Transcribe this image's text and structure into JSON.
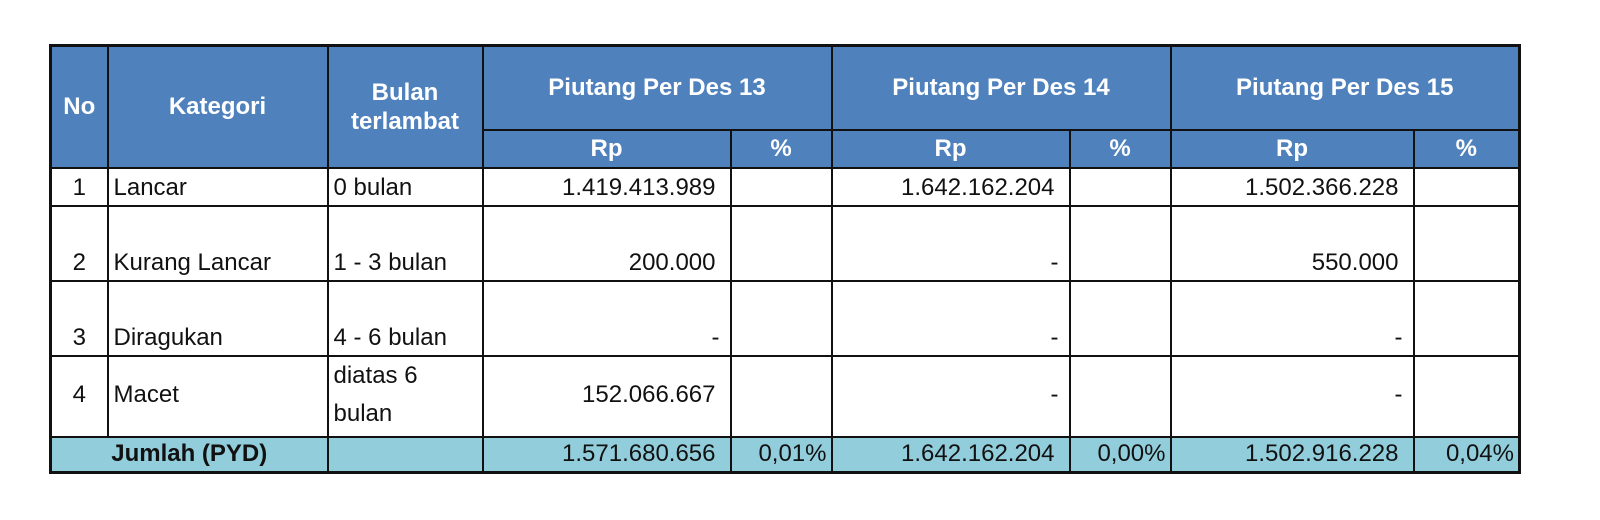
{
  "header": {
    "no": "No",
    "kategori": "Kategori",
    "bulan": "Bulan terlambat",
    "periods": [
      "Piutang Per Des 13",
      "Piutang Per Des 14",
      "Piutang Per Des 15"
    ],
    "rp": "Rp",
    "pct": "%"
  },
  "rows": [
    {
      "no": "1",
      "kategori": "Lancar",
      "bulan": "0 bulan",
      "rp13": "1.419.413.989",
      "rp14": "1.642.162.204",
      "rp15": "1.502.366.228"
    },
    {
      "no": "2",
      "kategori": "Kurang Lancar",
      "bulan": "1 - 3 bulan",
      "rp13": "200.000",
      "rp14": "-",
      "rp15": "550.000"
    },
    {
      "no": "3",
      "kategori": "Diragukan",
      "bulan": "4 - 6 bulan",
      "rp13": "-",
      "rp14": "-",
      "rp15": "-"
    },
    {
      "no": "4",
      "kategori": "Macet",
      "bulan": "diatas 6 bulan",
      "rp13": "152.066.667",
      "rp14": "-",
      "rp15": "-"
    }
  ],
  "total": {
    "label": "Jumlah (PYD)",
    "rp13": "1.571.680.656",
    "pct13": "0,01%",
    "rp14": "1.642.162.204",
    "pct14": "0,00%",
    "rp15": "1.502.916.228",
    "pct15": "0,04%"
  },
  "colors": {
    "header_bg": "#4F81BD",
    "total_bg": "#92CDDC",
    "border": "#111111"
  }
}
